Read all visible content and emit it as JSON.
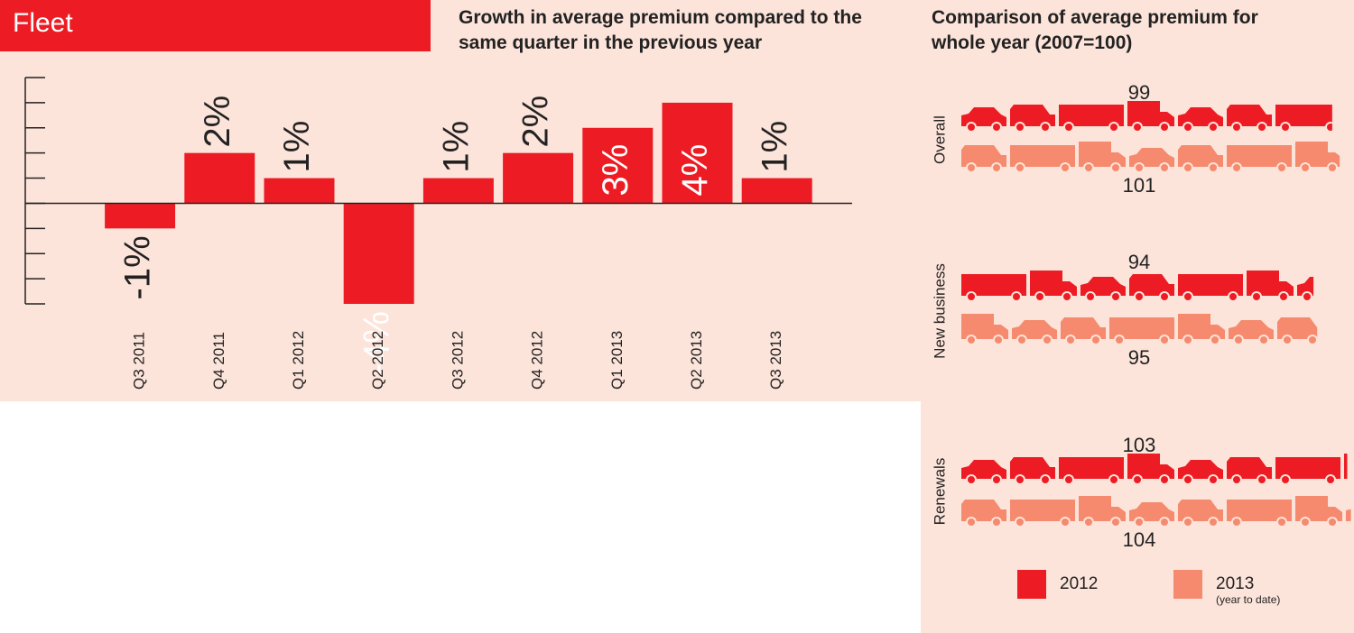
{
  "header": {
    "title": "Fleet"
  },
  "chart_data": [
    {
      "type": "bar",
      "title": "Growth in average premium compared to the same quarter in the previous year",
      "categories": [
        "Q3 2011",
        "Q4 2011",
        "Q1 2012",
        "Q2 2012",
        "Q3 2012",
        "Q4 2012",
        "Q1 2013",
        "Q2 2013",
        "Q3 2013"
      ],
      "values": [
        -1,
        2,
        1,
        -4,
        1,
        2,
        3,
        4,
        1
      ],
      "value_labels": [
        "-1%",
        "2%",
        "1%",
        "-4%",
        "1%",
        "2%",
        "3%",
        "4%",
        "1%"
      ],
      "color": "#ed1c24",
      "ylim": [
        -4,
        5
      ],
      "yticks": [
        -4,
        -3,
        -2,
        -1,
        0,
        1,
        2,
        3,
        4,
        5
      ]
    },
    {
      "type": "pictogram",
      "title": "Comparison of average premium for whole year (2007=100)",
      "categories": [
        "Overall",
        "New business",
        "Renewals"
      ],
      "series": [
        {
          "name": "2012",
          "color": "#ed1c24",
          "values": [
            99,
            94,
            103
          ]
        },
        {
          "name": "2013",
          "note": "(year to date)",
          "color": "#f58a6e",
          "values": [
            101,
            95,
            104
          ]
        }
      ]
    }
  ]
}
